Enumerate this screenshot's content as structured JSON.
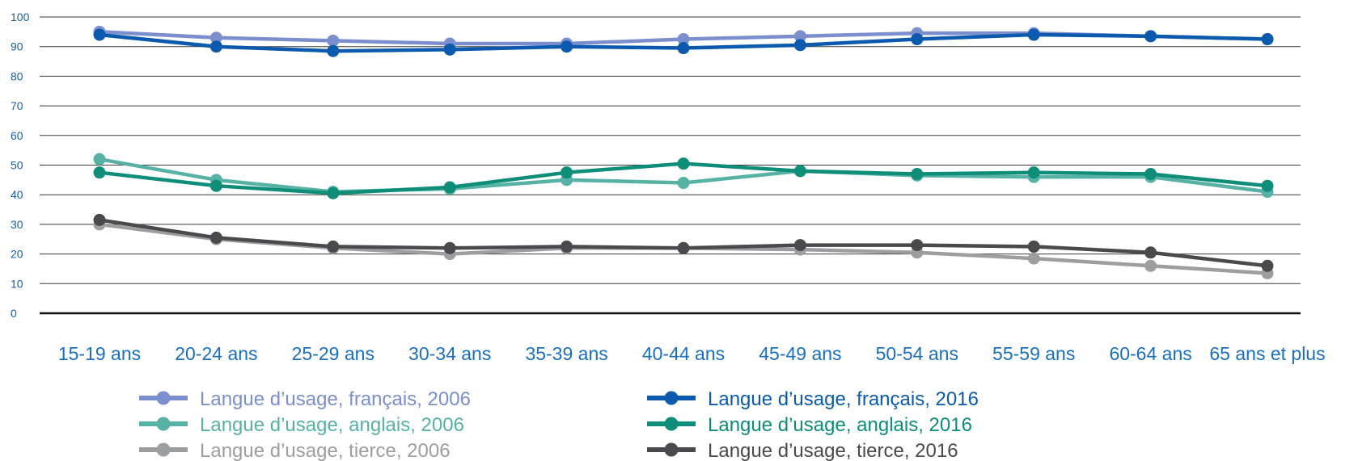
{
  "chart_data": {
    "type": "line",
    "title": "",
    "xlabel": "",
    "ylabel": "",
    "ylim": [
      0,
      100
    ],
    "yticks": [
      0,
      10,
      20,
      30,
      40,
      50,
      60,
      70,
      80,
      90,
      100
    ],
    "categories": [
      "15-19 ans",
      "20-24 ans",
      "25-29 ans",
      "30-34 ans",
      "35-39 ans",
      "40-44 ans",
      "45-49 ans",
      "50-54 ans",
      "55-59 ans",
      "60-64 ans",
      "65 ans et plus"
    ],
    "grid": true,
    "legend_position": "bottom",
    "series": [
      {
        "name": "Langue d’usage, français, 2006",
        "color": "#7b8fce",
        "values": [
          95,
          93,
          92,
          91,
          91,
          92.5,
          93.5,
          94.5,
          94.5,
          93.5,
          92.5
        ]
      },
      {
        "name": "Langue d’usage, français, 2016",
        "color": "#0b5aad",
        "values": [
          94,
          90,
          88.5,
          89,
          90,
          89.5,
          90.5,
          92.5,
          94,
          93.5,
          92.5
        ]
      },
      {
        "name": "Langue d’usage, anglais, 2006",
        "color": "#57b2a6",
        "values": [
          52,
          45,
          41,
          42,
          45,
          44,
          48,
          46.5,
          46,
          46,
          41
        ]
      },
      {
        "name": "Langue d’usage, anglais, 2016",
        "color": "#0e8e78",
        "values": [
          47.5,
          43,
          40.5,
          42.5,
          47.5,
          50.5,
          48,
          47,
          47.5,
          47,
          43
        ]
      },
      {
        "name": "Langue d’usage, tierce, 2006",
        "color": "#9d9ea0",
        "values": [
          30,
          25,
          22,
          20,
          22,
          22,
          21.5,
          20.5,
          18.5,
          16,
          13.5
        ]
      },
      {
        "name": "Langue d’usage, tierce, 2016",
        "color": "#4a4a4d",
        "values": [
          31.5,
          25.5,
          22.5,
          22,
          22.5,
          22,
          23,
          23,
          22.5,
          20.5,
          16
        ]
      }
    ]
  }
}
